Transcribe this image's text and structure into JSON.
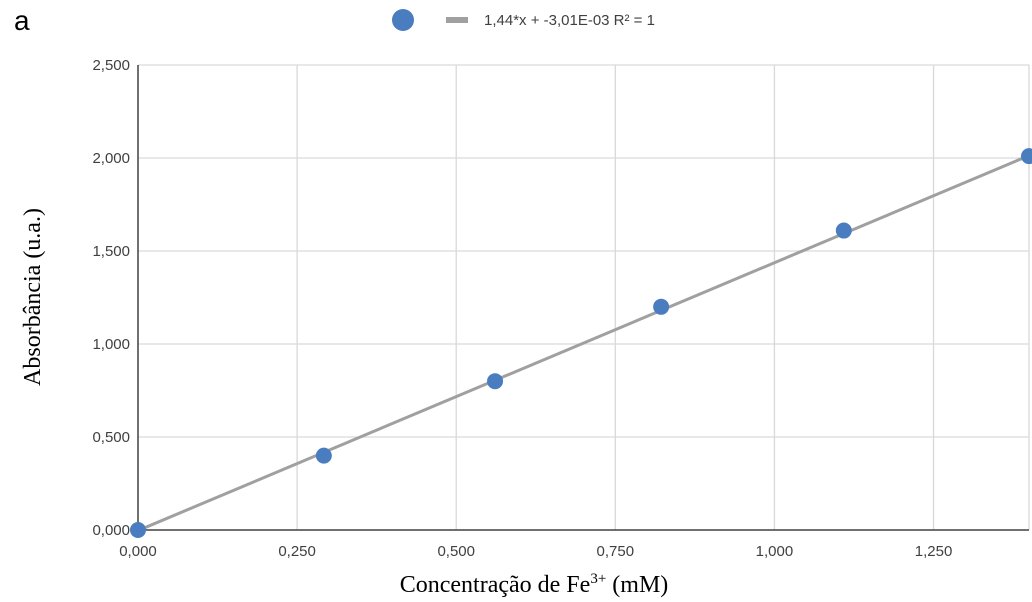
{
  "panel_label": "a",
  "chart_data": {
    "type": "scatter",
    "title": "",
    "xlabel": {
      "prefix": "Concentração de Fe",
      "superscript": "3+",
      "suffix": " (mM)"
    },
    "ylabel": "Absorbância (u.a.)",
    "xlim": [
      0,
      1.4
    ],
    "ylim": [
      0,
      2.5
    ],
    "x_ticks": [
      "0,000",
      "0,250",
      "0,500",
      "0,750",
      "1,000",
      "1,250"
    ],
    "x_tick_values": [
      0,
      0.25,
      0.5,
      0.75,
      1.0,
      1.25
    ],
    "y_ticks": [
      "0,000",
      "0,500",
      "1,000",
      "1,500",
      "2,000",
      "2,500"
    ],
    "y_tick_values": [
      0,
      0.5,
      1.0,
      1.5,
      2.0,
      2.5
    ],
    "grid": true,
    "legend_position": "top",
    "series": [
      {
        "kind": "points",
        "x": [
          0.0,
          0.292,
          0.561,
          0.822,
          1.109,
          1.4
        ],
        "y": [
          0.0,
          0.4,
          0.8,
          1.2,
          1.61,
          2.01
        ]
      },
      {
        "kind": "trendline",
        "name": "1,44*x + -3,01E-03 R² = 1",
        "slope": 1.44,
        "intercept": -0.00301
      }
    ],
    "colors": {
      "points": "#4a7dbf",
      "trendline": "#a0a0a0",
      "grid": "#d9d9d9",
      "axis": "#404040"
    }
  }
}
